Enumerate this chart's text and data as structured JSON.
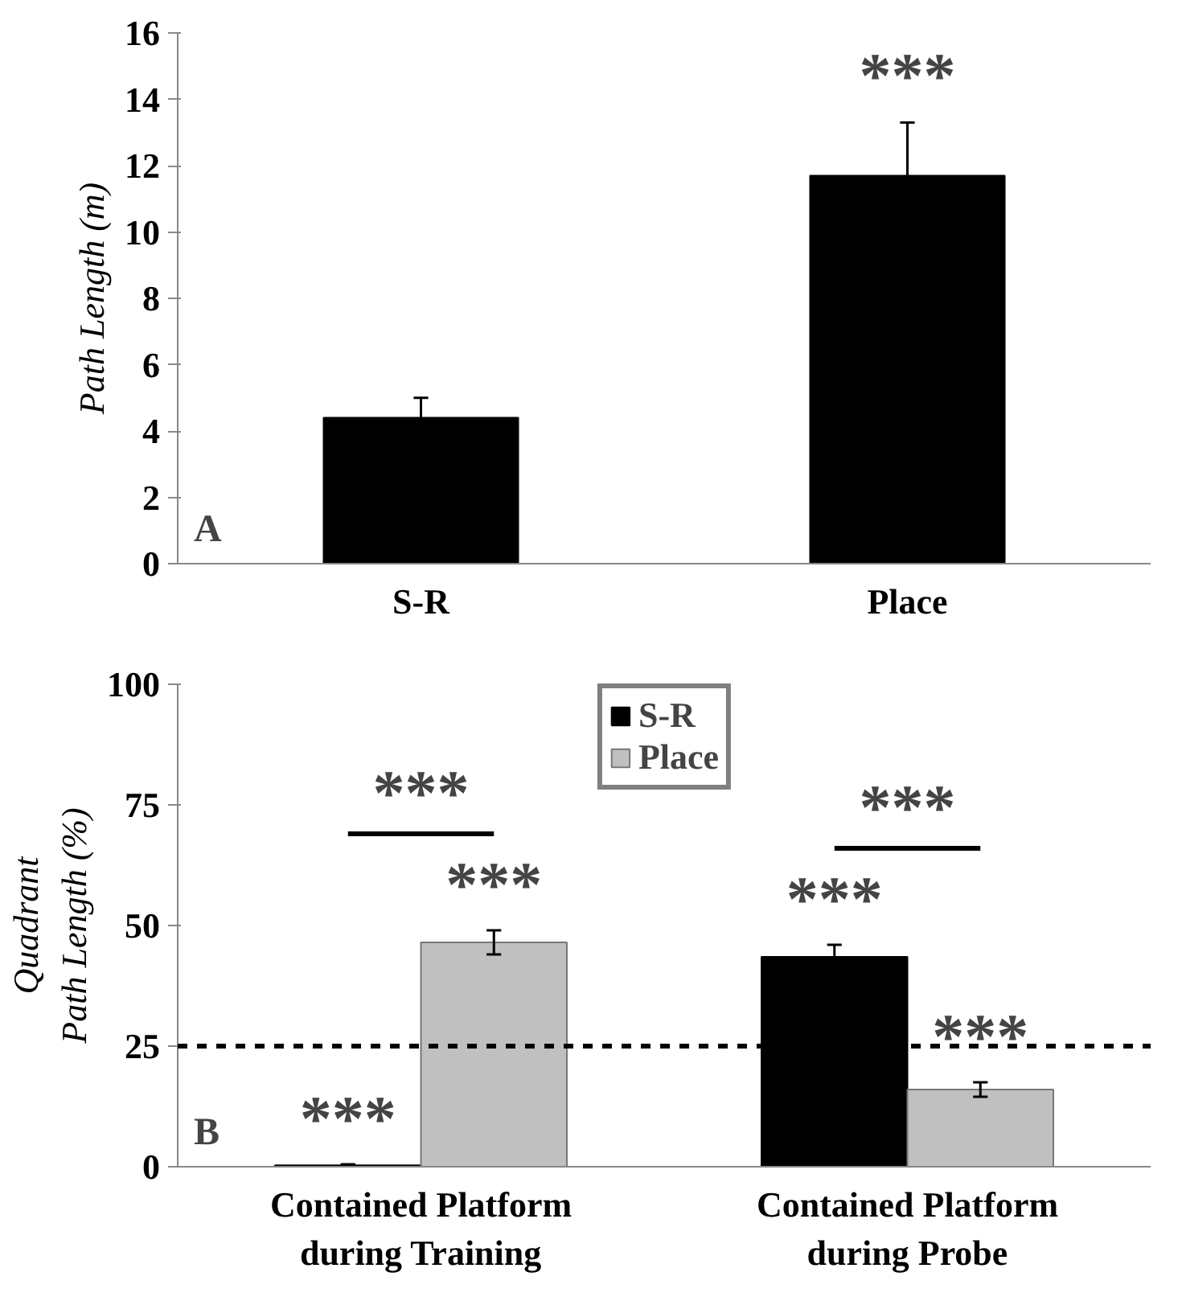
{
  "chart_data": [
    {
      "type": "bar",
      "ylabel": "Path Length (m)",
      "categories": [
        "S-R",
        "Place"
      ],
      "values": [
        4.4,
        11.7
      ],
      "errors": [
        0.6,
        1.6
      ],
      "color": "#000000",
      "ylim": [
        0,
        16
      ],
      "yticks": [
        0,
        2,
        4,
        6,
        8,
        10,
        12,
        14,
        16
      ],
      "grid": false,
      "legend": false,
      "annotations": [
        "***",
        "A"
      ]
    },
    {
      "type": "bar",
      "ylabel": "Quadrant\nPath Length (%)",
      "categories": [
        "Contained Platform during Training",
        "Contained Platform during Probe"
      ],
      "series": [
        {
          "name": "S-R",
          "color": "#000000",
          "values": [
            0.3,
            43.5
          ],
          "errors": [
            0.2,
            2.5
          ]
        },
        {
          "name": "Place",
          "color": "#c0c0c0",
          "values": [
            46.5,
            16
          ],
          "errors": [
            2.5,
            1.5
          ]
        }
      ],
      "ylim": [
        0,
        100
      ],
      "yticks": [
        0,
        25,
        50,
        75,
        100
      ],
      "grid": false,
      "legend": "top",
      "ref_lines": [
        {
          "axis": "y",
          "value": 25,
          "line_style": "dashed",
          "color": "#000000"
        }
      ],
      "annotations": [
        "***",
        "***",
        "***",
        "***",
        "***",
        "***",
        "B"
      ]
    }
  ]
}
